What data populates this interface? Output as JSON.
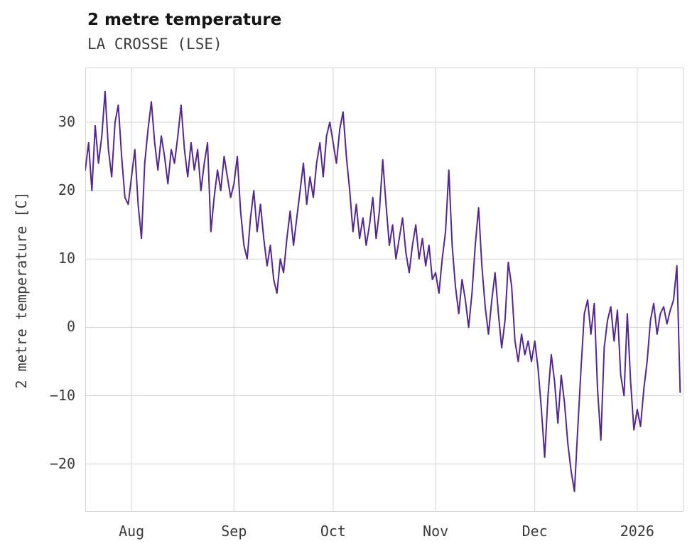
{
  "chart_data": {
    "type": "line",
    "title": "2 metre temperature",
    "subtitle": "LA CROSSE (LSE)",
    "xlabel": "",
    "ylabel": "2 metre temperature [C]",
    "units": "C",
    "grid": true,
    "legend": "none",
    "line_color": "#54278f",
    "grid_color": "#d4d4d4",
    "background_color": "#ffffff",
    "x_axis": {
      "unit": "days",
      "xlim": [
        0,
        181
      ],
      "ticks": [
        {
          "day": 14,
          "label": "Aug"
        },
        {
          "day": 45,
          "label": "Sep"
        },
        {
          "day": 75,
          "label": "Oct"
        },
        {
          "day": 106,
          "label": "Nov"
        },
        {
          "day": 136,
          "label": "Dec"
        },
        {
          "day": 167,
          "label": "2026"
        }
      ]
    },
    "y_axis": {
      "ylim": [
        -27,
        38
      ],
      "ticks": [
        -20,
        -10,
        0,
        10,
        20,
        30
      ]
    },
    "series": [
      {
        "name": "2 metre temperature",
        "x_start_day": 0,
        "x_step_days": 1,
        "values": [
          23,
          27,
          20,
          29.5,
          24,
          28,
          34.5,
          26,
          22,
          30,
          32.5,
          25,
          19,
          18,
          22,
          26,
          18,
          13,
          24,
          29,
          33,
          27,
          23,
          28,
          25,
          21,
          26,
          24,
          28,
          32.5,
          26,
          22,
          27,
          23,
          26,
          20,
          24,
          27,
          14,
          19,
          23,
          20,
          25,
          22,
          19,
          21,
          25,
          17,
          12,
          10,
          16,
          20,
          14,
          18,
          13,
          9,
          12,
          7,
          5,
          10,
          8,
          13,
          17,
          12,
          16,
          20,
          24,
          18,
          22,
          19,
          24,
          27,
          22,
          28,
          30,
          27,
          24,
          29,
          31.5,
          25,
          20,
          14,
          18,
          13,
          16,
          12,
          15,
          19,
          13,
          17,
          24.5,
          18,
          12,
          15,
          10,
          13,
          16,
          11,
          8,
          12,
          15,
          10,
          13,
          9,
          12,
          7,
          8,
          5,
          10,
          14,
          23,
          12,
          6,
          2,
          7,
          4,
          0,
          5,
          12,
          17.5,
          9,
          3,
          -1,
          4,
          8,
          2,
          -3,
          1,
          9.5,
          6,
          -2,
          -5,
          -1,
          -4,
          -2,
          -5,
          -2,
          -6,
          -12,
          -19,
          -10,
          -4,
          -8,
          -14,
          -7,
          -11,
          -17,
          -21,
          -24,
          -15,
          -6,
          2,
          4,
          -1,
          3.5,
          -9,
          -16.5,
          -3,
          1,
          3,
          -2,
          2.5,
          -7,
          -10,
          2,
          -8,
          -15,
          -12,
          -14.5,
          -9,
          -5,
          1,
          3.5,
          -1,
          2,
          3,
          0.5,
          2.5,
          4,
          9,
          -9.5
        ]
      }
    ]
  }
}
